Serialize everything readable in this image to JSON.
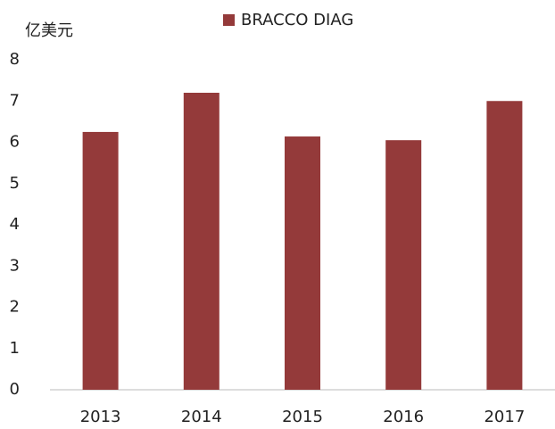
{
  "chart_data": {
    "type": "bar",
    "ylabel": "亿美元",
    "categories": [
      "2013",
      "2014",
      "2015",
      "2016",
      "2017"
    ],
    "series": [
      {
        "name": "BRACCO DIAG",
        "color": "#943a3a",
        "values": [
          6.25,
          7.2,
          6.14,
          6.05,
          7.0
        ]
      }
    ],
    "ylim": [
      0,
      8
    ],
    "yticks": [
      0,
      1,
      2,
      3,
      4,
      5,
      6,
      7,
      8
    ],
    "grid": false,
    "legend": "top"
  }
}
